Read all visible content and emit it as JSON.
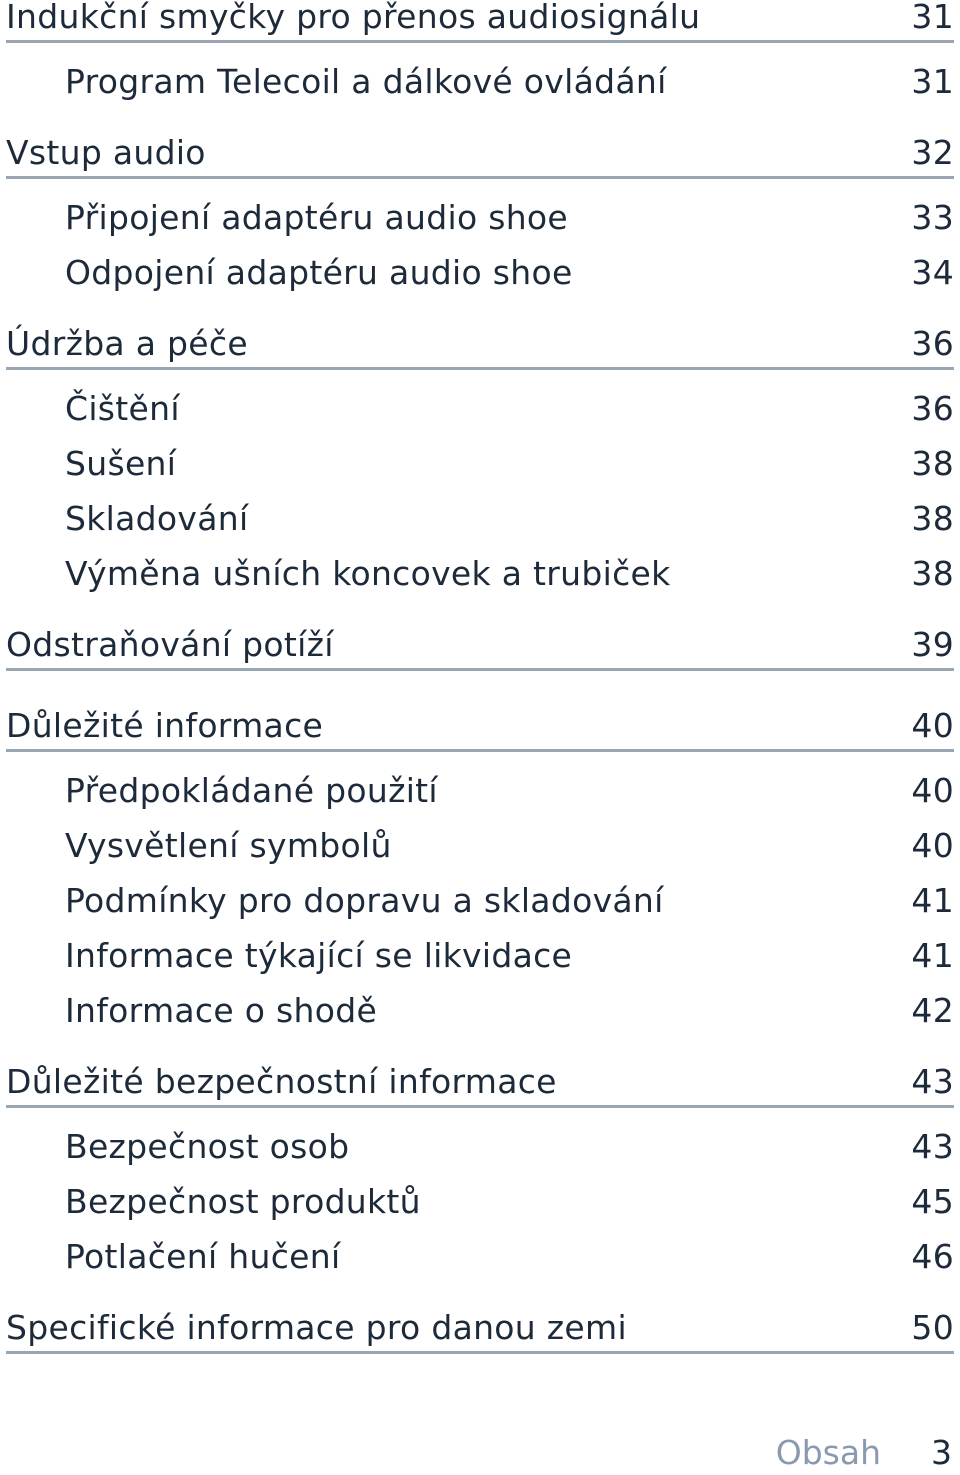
{
  "toc": {
    "s0": {
      "heading": {
        "title": "Indukční smyčky pro přenos audiosignálu",
        "page": "31"
      },
      "items": [
        {
          "title": "Program Telecoil a dálkové ovládání",
          "page": "31"
        }
      ]
    },
    "s1": {
      "heading": {
        "title": "Vstup audio",
        "page": "32"
      },
      "items": [
        {
          "title": "Připojení adaptéru audio shoe",
          "page": "33"
        },
        {
          "title": "Odpojení adaptéru audio shoe",
          "page": "34"
        }
      ]
    },
    "s2": {
      "heading": {
        "title": "Údržba a péče",
        "page": "36"
      },
      "items": [
        {
          "title": "Čištění",
          "page": "36"
        },
        {
          "title": "Sušení",
          "page": "38"
        },
        {
          "title": "Skladování",
          "page": "38"
        },
        {
          "title": "Výměna ušních koncovek a trubiček",
          "page": "38"
        }
      ]
    },
    "s3": {
      "heading": {
        "title": "Odstraňování potíží",
        "page": "39"
      },
      "items": []
    },
    "s4": {
      "heading": {
        "title": "Důležité informace",
        "page": "40"
      },
      "items": [
        {
          "title": "Předpokládané použití",
          "page": "40"
        },
        {
          "title": "Vysvětlení symbolů",
          "page": "40"
        },
        {
          "title": "Podmínky pro dopravu a skladování",
          "page": "41"
        },
        {
          "title": "Informace týkající se likvidace",
          "page": "41"
        },
        {
          "title": "Informace o shodě",
          "page": "42"
        }
      ]
    },
    "s5": {
      "heading": {
        "title": "Důležité bezpečnostní informace",
        "page": "43"
      },
      "items": [
        {
          "title": "Bezpečnost osob",
          "page": "43"
        },
        {
          "title": "Bezpečnost produktů",
          "page": "45"
        },
        {
          "title": "Potlačení hučení",
          "page": "46"
        }
      ]
    },
    "s6": {
      "heading": {
        "title": "Specifické informace pro danou zemi",
        "page": "50"
      },
      "items": []
    }
  },
  "footer": {
    "label": "Obsah",
    "page": "3"
  },
  "colors": {
    "text": "#1d2a3a",
    "rule": "#9aa6b2",
    "footer_label": "#8a9aae"
  }
}
